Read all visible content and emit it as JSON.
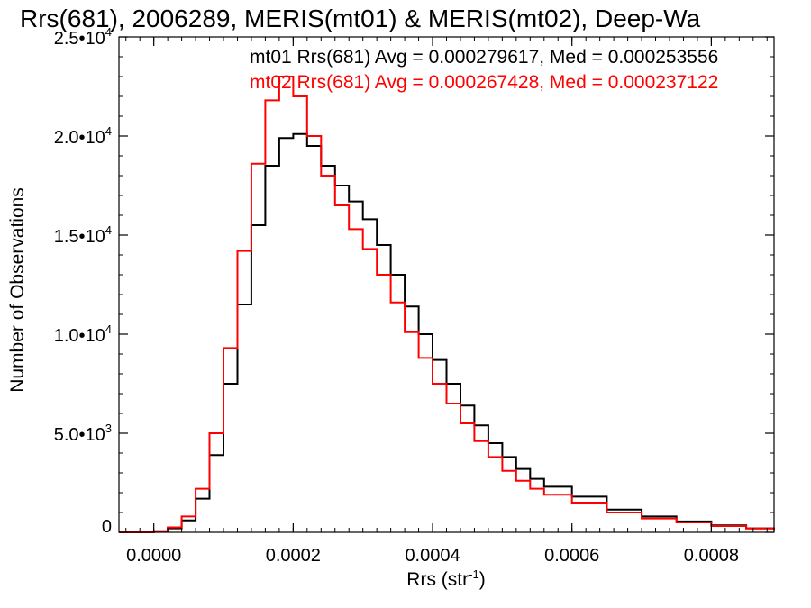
{
  "chart_data": {
    "type": "line",
    "title": "Rrs(681), 2006289, MERIS(mt01) & MERIS(mt02), Deep-Wa",
    "xlabel": "Rrs (str",
    "xlabel_sup": "-1",
    "xlabel_close": ")",
    "ylabel": "Number of Observations",
    "xlim": [
      -5e-05,
      0.00089
    ],
    "ylim": [
      0,
      25000
    ],
    "grid": false,
    "step": true,
    "x_ticks": [
      {
        "value": 0.0,
        "label": "0.0000"
      },
      {
        "value": 0.0002,
        "label": "0.0002"
      },
      {
        "value": 0.0004,
        "label": "0.0004"
      },
      {
        "value": 0.0006,
        "label": "0.0006"
      },
      {
        "value": 0.0008,
        "label": "0.0008"
      }
    ],
    "y_ticks": [
      {
        "value": 0,
        "mant": "0",
        "exp": ""
      },
      {
        "value": 5000,
        "mant": "5.0•10",
        "exp": "3"
      },
      {
        "value": 10000,
        "mant": "1.0•10",
        "exp": "4"
      },
      {
        "value": 15000,
        "mant": "1.5•10",
        "exp": "4"
      },
      {
        "value": 20000,
        "mant": "2.0•10",
        "exp": "4"
      },
      {
        "value": 25000,
        "mant": "2.5•10",
        "exp": "4"
      }
    ],
    "annotations": [
      {
        "text": "mt01 Rrs(681) Avg = 0.000279617, Med = 0.000253556",
        "color": "#000000"
      },
      {
        "text": "mt02 Rrs(681) Avg = 0.000267428, Med = 0.000237122",
        "color": "#ff0000"
      }
    ],
    "series": [
      {
        "color": "#000000",
        "x": [
          -5e-05,
          0.0,
          2e-05,
          4e-05,
          6e-05,
          8e-05,
          0.0001,
          0.00012,
          0.00014,
          0.00016,
          0.00018,
          0.0002,
          0.00022,
          0.00024,
          0.00026,
          0.00028,
          0.0003,
          0.00032,
          0.00034,
          0.00036,
          0.00038,
          0.0004,
          0.00042,
          0.00044,
          0.00046,
          0.00048,
          0.0005,
          0.00052,
          0.00054,
          0.00056,
          0.0006,
          0.00065,
          0.0007,
          0.00075,
          0.0008,
          0.00085,
          0.00089
        ],
        "y": [
          0,
          50,
          200,
          600,
          1700,
          3900,
          7500,
          11500,
          15500,
          18500,
          19900,
          20100,
          19500,
          18500,
          17500,
          16700,
          15800,
          14500,
          13000,
          11400,
          10000,
          8700,
          7500,
          6400,
          5400,
          4500,
          3800,
          3200,
          2700,
          2300,
          1800,
          1150,
          800,
          550,
          350,
          200,
          130
        ]
      },
      {
        "color": "#ff0000",
        "x": [
          -5e-05,
          0.0,
          2e-05,
          4e-05,
          6e-05,
          8e-05,
          0.0001,
          0.00012,
          0.00014,
          0.00016,
          0.00018,
          0.0002,
          0.00022,
          0.00024,
          0.00026,
          0.00028,
          0.0003,
          0.00032,
          0.00034,
          0.00036,
          0.00038,
          0.0004,
          0.00042,
          0.00044,
          0.00046,
          0.00048,
          0.0005,
          0.00052,
          0.00054,
          0.00056,
          0.0006,
          0.00065,
          0.0007,
          0.00075,
          0.0008,
          0.00085,
          0.00089
        ],
        "y": [
          0,
          60,
          250,
          800,
          2200,
          5000,
          9300,
          14200,
          18600,
          21800,
          23000,
          22000,
          20000,
          18000,
          16500,
          15300,
          14300,
          13000,
          11600,
          10100,
          8800,
          7500,
          6500,
          5500,
          4600,
          3800,
          3100,
          2600,
          2200,
          1900,
          1500,
          1000,
          700,
          500,
          320,
          190,
          120
        ]
      }
    ]
  }
}
